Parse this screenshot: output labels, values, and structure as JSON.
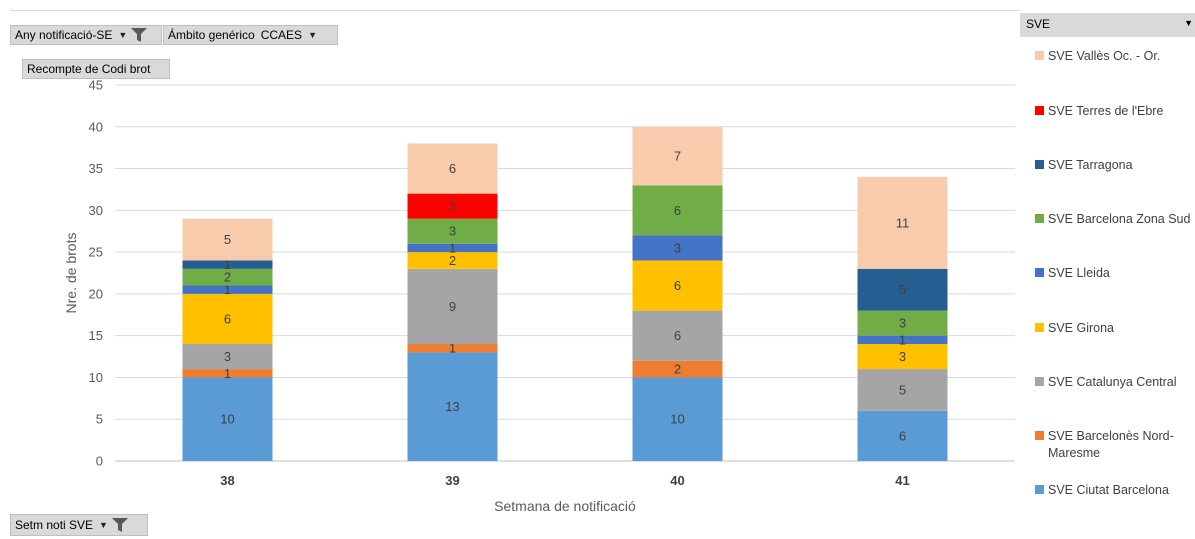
{
  "filters": {
    "year_label": "Any notificació-SE",
    "ambit_label": "Ámbito genérico",
    "ambit_value": "CCAES",
    "measure_label": "Recompte de Codi brot",
    "axis_field_label": "Setm noti SVE"
  },
  "legend_header": "SVE",
  "chart_data": {
    "type": "bar",
    "stacked": true,
    "xlabel": "Setmana de notificació",
    "ylabel": "Nre. de brots",
    "ylim": [
      0,
      45
    ],
    "yticks": [
      0,
      5,
      10,
      15,
      20,
      25,
      30,
      35,
      40,
      45
    ],
    "grid": true,
    "legend_position": "right",
    "categories": [
      "38",
      "39",
      "40",
      "41"
    ],
    "series": [
      {
        "name": "SVE Ciutat Barcelona",
        "color": "#5b9bd5",
        "values": [
          10,
          13,
          10,
          6
        ]
      },
      {
        "name": "SVE Barcelonès Nord-Maresme",
        "color": "#ed7d31",
        "values": [
          1,
          1,
          2,
          0
        ]
      },
      {
        "name": "SVE Catalunya Central",
        "color": "#a5a5a5",
        "values": [
          3,
          9,
          6,
          5
        ]
      },
      {
        "name": "SVE Girona",
        "color": "#ffc000",
        "values": [
          6,
          2,
          6,
          3
        ]
      },
      {
        "name": "SVE Lleida",
        "color": "#4472c4",
        "values": [
          1,
          1,
          3,
          1
        ]
      },
      {
        "name": "SVE Barcelona Zona Sud",
        "color": "#70ad47",
        "values": [
          2,
          3,
          6,
          3
        ]
      },
      {
        "name": "SVE Tarragona",
        "color": "#255e91",
        "values": [
          1,
          0,
          0,
          5
        ]
      },
      {
        "name": "SVE Terres de l'Ebre",
        "color": "#ff0000",
        "values": [
          0,
          3,
          0,
          0
        ]
      },
      {
        "name": "SVE Vallès Oc. - Or.",
        "color": "#f8cbad",
        "values": [
          5,
          6,
          7,
          11
        ]
      }
    ]
  }
}
